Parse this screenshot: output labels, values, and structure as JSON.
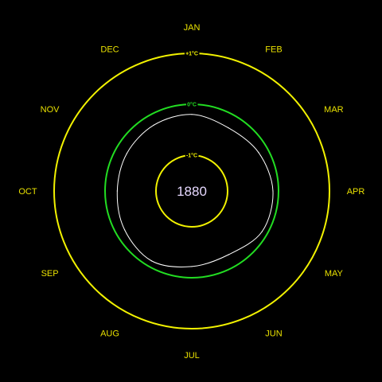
{
  "chart_data": {
    "type": "line",
    "subtype": "climate-spiral",
    "year": "1880",
    "months": [
      "JAN",
      "FEB",
      "MAR",
      "APR",
      "MAY",
      "JUN",
      "JUL",
      "AUG",
      "SEP",
      "OCT",
      "NOV",
      "DEC"
    ],
    "series": [
      {
        "values": [
          -0.2,
          -0.27,
          -0.19,
          -0.11,
          -0.11,
          -0.26,
          -0.22,
          -0.12,
          -0.18,
          -0.24,
          -0.23,
          -0.21
        ]
      }
    ],
    "rings": [
      {
        "label": "+1°C",
        "value": 1,
        "color": "#f2f200"
      },
      {
        "label": "0°C",
        "value": 0,
        "color": "#22dd22"
      },
      {
        "label": "-1°C",
        "value": -1,
        "color": "#f2f200"
      }
    ],
    "rlim": [
      -1,
      1
    ]
  },
  "colors": {
    "background": "#000000",
    "month_text": "#e8e000",
    "series_line": "#ffffff",
    "year_text": "#e6d8ff"
  }
}
